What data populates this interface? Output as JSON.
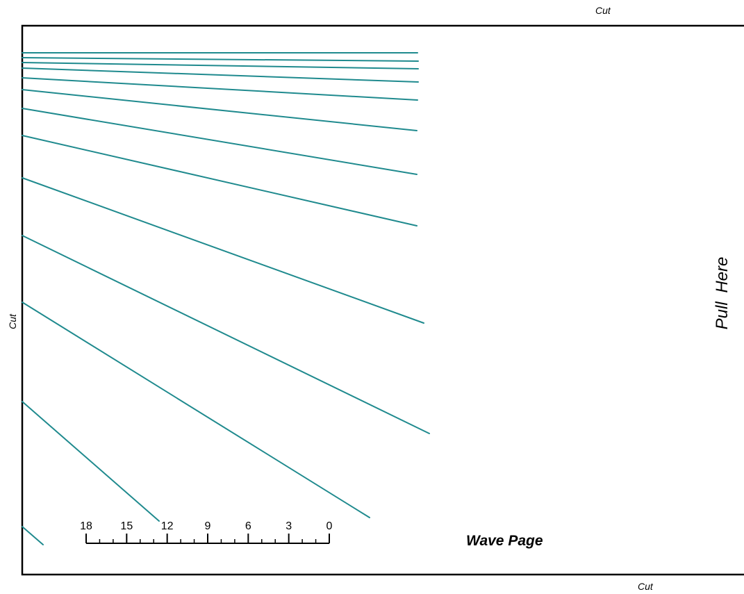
{
  "labels": {
    "cut_top": "Cut",
    "cut_left": "Cut",
    "cut_bottom": "Cut",
    "pull_here": "Pull  Here",
    "title": "Wave Page"
  },
  "scale": {
    "tick_labels": [
      "18",
      "15",
      "12",
      "9",
      "6",
      "3",
      "0"
    ]
  },
  "colors": {
    "wave_line": "#1f8a8e",
    "border": "#000000",
    "background": "#ffffff"
  }
}
